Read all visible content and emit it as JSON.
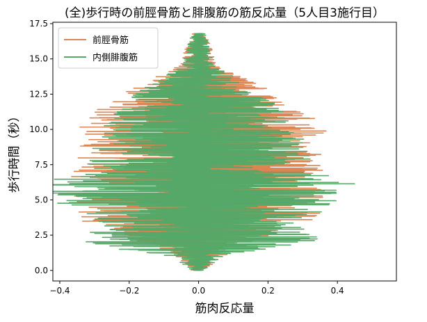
{
  "chart_data": {
    "type": "line",
    "title": "(全)歩行時の前脛骨筋と腓腹筋の筋反応量（5人目3施行目）",
    "xlabel": "筋肉反応量",
    "ylabel": "歩行時間（秒）",
    "xlim": [
      -0.42,
      0.57
    ],
    "ylim": [
      -0.75,
      17.6
    ],
    "xticks": [
      "−0.4",
      "−0.2",
      "0.0",
      "0.2",
      "0.4"
    ],
    "xtick_values": [
      -0.4,
      -0.2,
      0.0,
      0.2,
      0.4
    ],
    "yticks": [
      "0.0",
      "2.5",
      "5.0",
      "7.5",
      "10.0",
      "12.5",
      "15.0",
      "17.5"
    ],
    "ytick_values": [
      0.0,
      2.5,
      5.0,
      7.5,
      10.0,
      12.5,
      15.0,
      17.5
    ],
    "grid": false,
    "legend_position": "top-left",
    "series": [
      {
        "name": "前脛骨筋",
        "color": "#dd8452",
        "time_range": [
          0.0,
          16.8
        ],
        "envelope": [
          {
            "t": 0.0,
            "amp": 0.02
          },
          {
            "t": 1.0,
            "amp": 0.07
          },
          {
            "t": 2.0,
            "amp": 0.17
          },
          {
            "t": 3.5,
            "amp": 0.34
          },
          {
            "t": 5.2,
            "amp": 0.38
          },
          {
            "t": 7.5,
            "amp": 0.36
          },
          {
            "t": 9.7,
            "amp": 0.39
          },
          {
            "t": 11.5,
            "amp": 0.3
          },
          {
            "t": 13.0,
            "amp": 0.2
          },
          {
            "t": 14.5,
            "amp": 0.06
          },
          {
            "t": 16.8,
            "amp": 0.02
          }
        ]
      },
      {
        "name": "内側腓腹筋",
        "color": "#55a868",
        "time_range": [
          0.0,
          16.8
        ],
        "envelope": [
          {
            "t": 0.0,
            "amp": 0.02
          },
          {
            "t": 1.0,
            "amp": 0.08
          },
          {
            "t": 1.9,
            "amp": 0.36
          },
          {
            "t": 3.5,
            "amp": 0.3
          },
          {
            "t": 5.6,
            "amp": 0.5
          },
          {
            "t": 7.5,
            "amp": 0.33
          },
          {
            "t": 9.5,
            "amp": 0.3
          },
          {
            "t": 11.5,
            "amp": 0.24
          },
          {
            "t": 13.0,
            "amp": 0.16
          },
          {
            "t": 14.5,
            "amp": 0.05
          },
          {
            "t": 16.8,
            "amp": 0.02
          }
        ]
      }
    ]
  }
}
